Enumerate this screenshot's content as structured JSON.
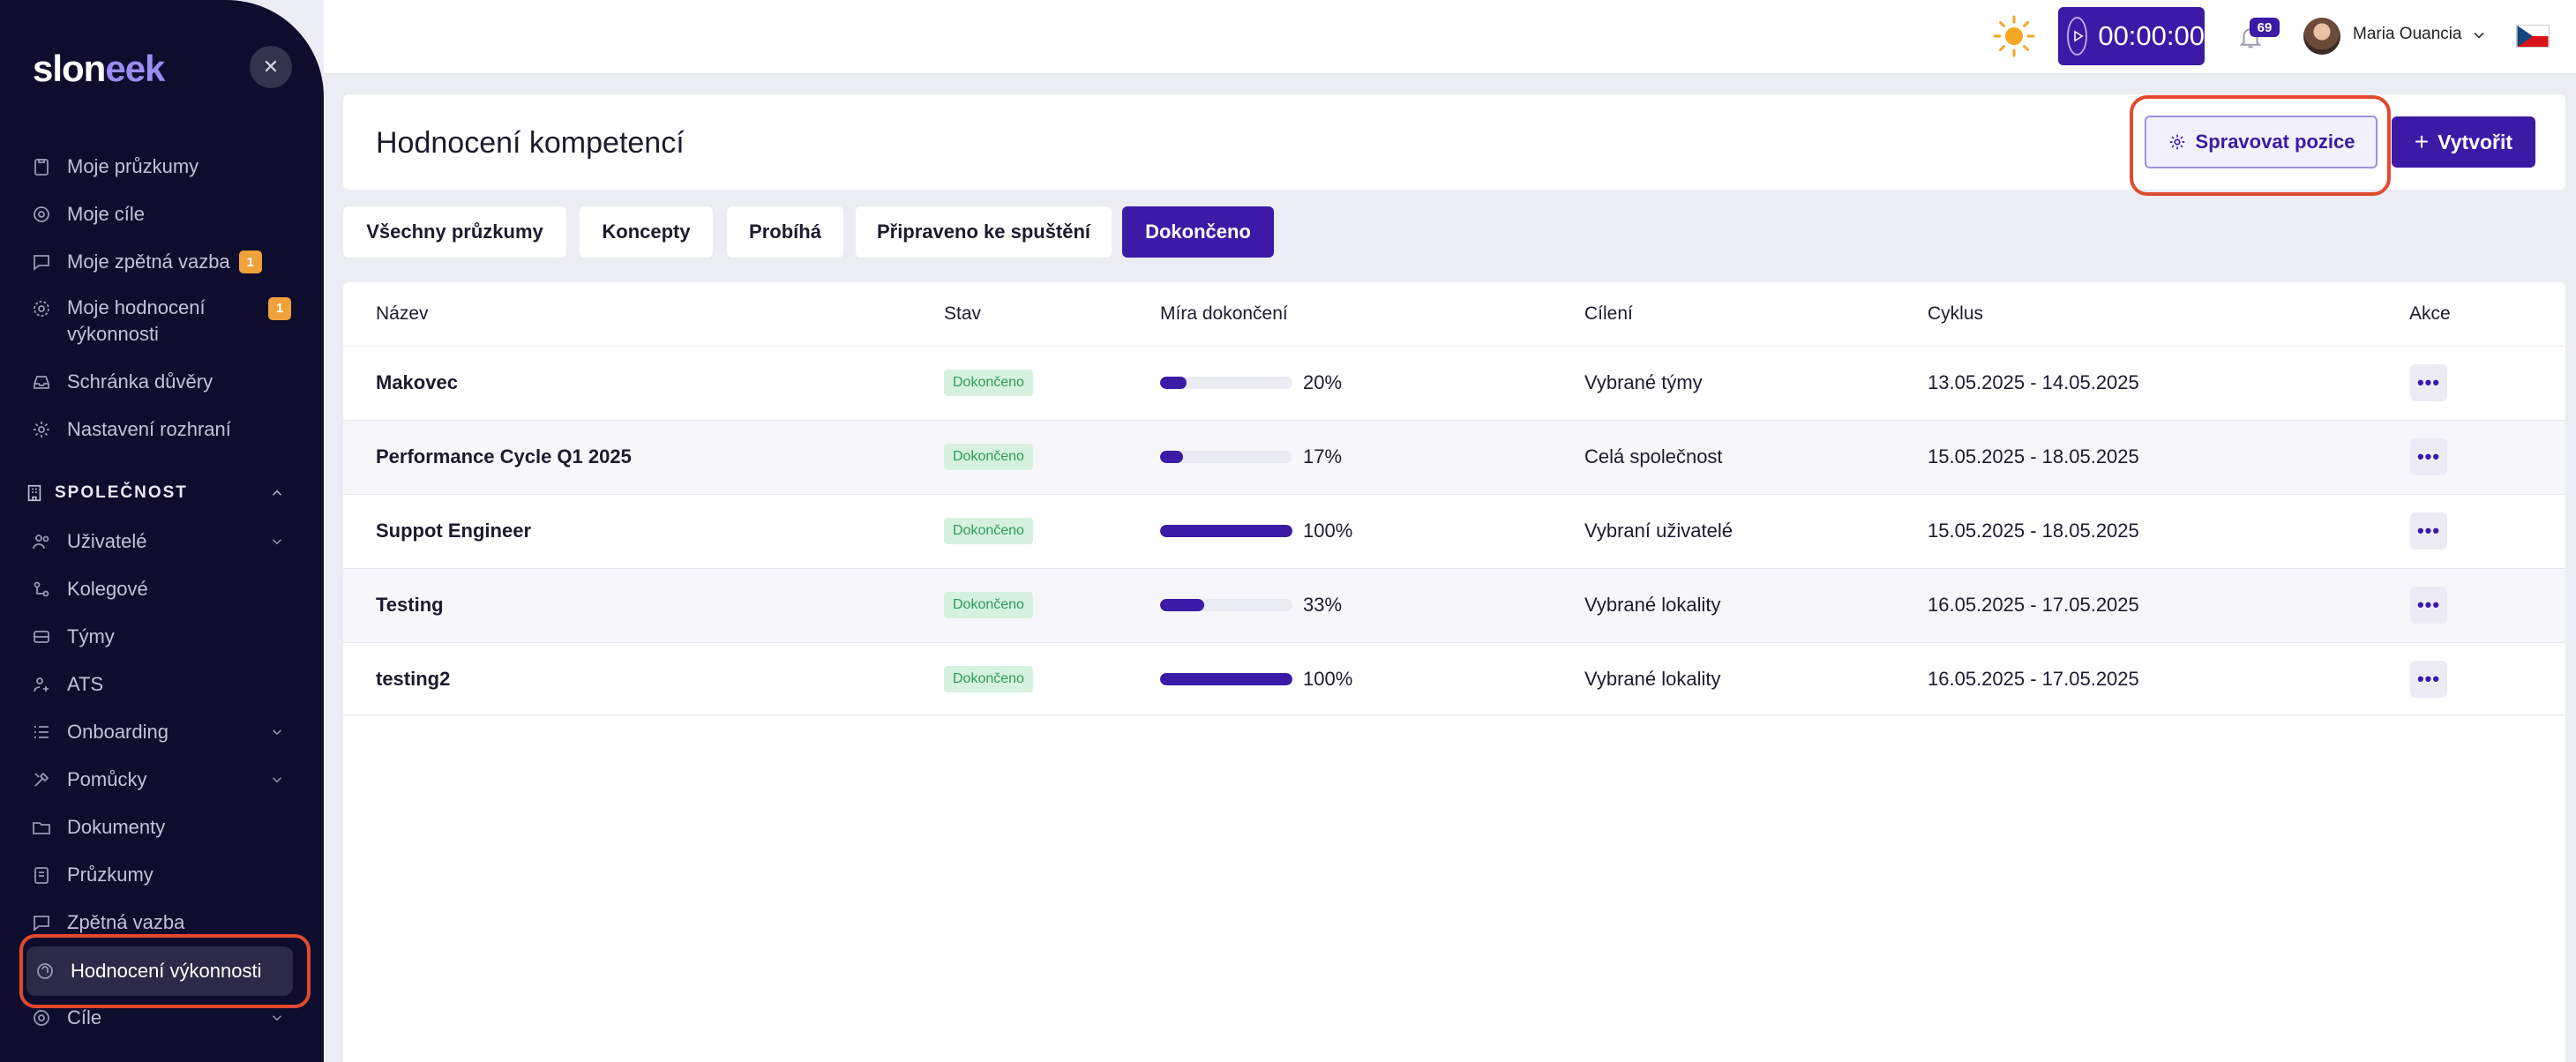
{
  "app": {
    "logo_main": "slon",
    "logo_accent": "eek"
  },
  "sidebar": {
    "items": [
      {
        "label": "Moje průzkumy",
        "icon": "clipboard-icon"
      },
      {
        "label": "Moje cíle",
        "icon": "target-icon"
      },
      {
        "label": "Moje zpětná vazba",
        "icon": "chat-icon",
        "badge": "1"
      },
      {
        "label_line1": "Moje hodnocení",
        "label_line2": "výkonnosti",
        "icon": "gear-icon",
        "badge": "1"
      },
      {
        "label": "Schránka důvěry",
        "icon": "inbox-icon"
      },
      {
        "label": "Nastavení rozhraní",
        "icon": "settings-icon"
      }
    ],
    "section": "SPOLEČNOST",
    "company_items": [
      {
        "label": "Uživatelé",
        "icon": "users-icon",
        "chevron": true
      },
      {
        "label": "Kolegové",
        "icon": "colleagues-icon"
      },
      {
        "label": "Týmy",
        "icon": "teams-icon"
      },
      {
        "label": "ATS",
        "icon": "ats-icon"
      },
      {
        "label": "Onboarding",
        "icon": "onboarding-icon",
        "chevron": true
      },
      {
        "label": "Pomůcky",
        "icon": "tools-icon",
        "chevron": true
      },
      {
        "label": "Dokumenty",
        "icon": "folder-icon"
      },
      {
        "label": "Průzkumy",
        "icon": "survey-icon"
      },
      {
        "label": "Zpětná vazba",
        "icon": "feedback-icon"
      },
      {
        "label": "Hodnocení výkonnosti",
        "icon": "performance-icon",
        "active": true
      },
      {
        "label": "Cíle",
        "icon": "goals-icon",
        "chevron": true
      }
    ]
  },
  "topbar": {
    "timer": "00:00:00",
    "notifications": "69",
    "user_name": "Maria Ouancia"
  },
  "page": {
    "title": "Hodnocení kompetencí",
    "manage_label": "Spravovat pozice",
    "create_label": "Vytvořit"
  },
  "tabs": [
    "Všechny průzkumy",
    "Koncepty",
    "Probíhá",
    "Připraveno ke spuštění",
    "Dokončeno"
  ],
  "active_tab": "Dokončeno",
  "table": {
    "headers": [
      "Název",
      "Stav",
      "Míra dokončení",
      "Cílení",
      "Cyklus",
      "Akce"
    ],
    "rows": [
      {
        "name": "Makovec",
        "status": "Dokončeno",
        "progress": 20,
        "progress_label": "20%",
        "targeting": "Vybrané týmy",
        "cycle": "13.05.2025 - 14.05.2025"
      },
      {
        "name": "Performance Cycle Q1 2025",
        "status": "Dokončeno",
        "progress": 17,
        "progress_label": "17%",
        "targeting": "Celá společnost",
        "cycle": "15.05.2025 - 18.05.2025"
      },
      {
        "name": "Suppot Engineer",
        "status": "Dokončeno",
        "progress": 100,
        "progress_label": "100%",
        "targeting": "Vybraní uživatelé",
        "cycle": "15.05.2025 - 18.05.2025"
      },
      {
        "name": "Testing",
        "status": "Dokončeno",
        "progress": 33,
        "progress_label": "33%",
        "targeting": "Vybrané lokality",
        "cycle": "16.05.2025 - 17.05.2025"
      },
      {
        "name": "testing2",
        "status": "Dokončeno",
        "progress": 100,
        "progress_label": "100%",
        "targeting": "Vybrané lokality",
        "cycle": "16.05.2025 - 17.05.2025"
      }
    ]
  },
  "colors": {
    "primary": "#3b1aa6",
    "sidebar": "#0f0d2e",
    "highlight": "#e2492d",
    "status_bg": "#d6f2df",
    "status_text": "#2a9b56",
    "badge": "#f0a13a"
  }
}
